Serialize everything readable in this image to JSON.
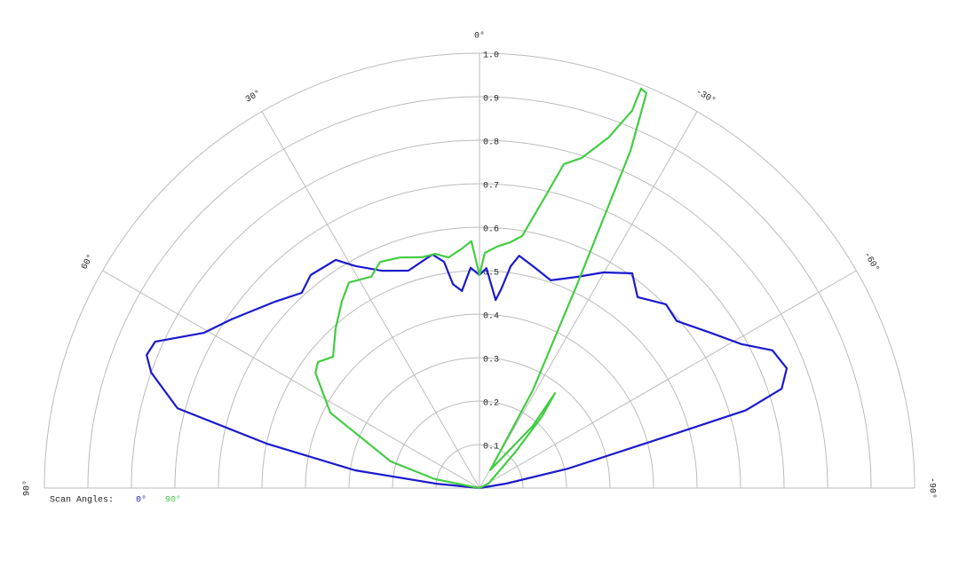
{
  "chart_data": {
    "type": "polar",
    "thetalim": [
      -90,
      90
    ],
    "rlim": [
      0,
      1
    ],
    "thetaticks": [
      {
        "value": 90,
        "label": "90°"
      },
      {
        "value": 60,
        "label": "60°"
      },
      {
        "value": 30,
        "label": "30°"
      },
      {
        "value": 0,
        "label": "0°"
      },
      {
        "value": -30,
        "label": "-30°"
      },
      {
        "value": -60,
        "label": "-60°"
      },
      {
        "value": -90,
        "label": "-90°"
      }
    ],
    "rticks": [
      0.1,
      0.2,
      0.3,
      0.4,
      0.5,
      0.6,
      0.7,
      0.8,
      0.9,
      {
        "value": 1,
        "label": "1.0"
      }
    ],
    "grid": true,
    "legend_title": "Scan Angles:",
    "series": [
      {
        "name": "0°",
        "color": "#1a1acc",
        "theta": [
          90,
          84.3,
          81.9,
          78.2,
          75.2,
          70.6,
          68.2,
          65.7,
          60.6,
          55.8,
          47.6,
          42.3,
          38.4,
          32.2,
          29.2,
          24.2,
          18.1,
          11.4,
          8.9,
          7.4,
          5.1,
          2.3,
          0,
          -1.8,
          -4.9,
          -6.3,
          -8.0,
          -9.7,
          -13.5,
          -18.9,
          -24.8,
          -29.9,
          -35.4,
          -39.6,
          -45.4,
          -49.7,
          -56.1,
          -61.2,
          -64.8,
          -68.7,
          -71.8,
          -73.7,
          -74.6,
          -77.6,
          -80.5,
          -90
        ],
        "values": [
          0,
          0.1,
          0.289,
          0.5,
          0.718,
          0.8,
          0.824,
          0.818,
          0.727,
          0.69,
          0.636,
          0.607,
          0.625,
          0.62,
          0.585,
          0.548,
          0.526,
          0.548,
          0.527,
          0.473,
          0.455,
          0.507,
          0.49,
          0.506,
          0.434,
          0.462,
          0.515,
          0.542,
          0.525,
          0.505,
          0.535,
          0.572,
          0.606,
          0.57,
          0.602,
          0.594,
          0.64,
          0.687,
          0.744,
          0.758,
          0.731,
          0.638,
          0.445,
          0.209,
          0.062,
          0
        ]
      },
      {
        "name": "90°",
        "color": "#44cc44",
        "theta": [
          90,
          78.7,
          73.3,
          63.2,
          54.9,
          52.0,
          48.1,
          42.0,
          36.4,
          32.4,
          27.1,
          23.7,
          19.1,
          14.0,
          10.7,
          7.7,
          4.2,
          1.9,
          0,
          -1.3,
          -4.2,
          -7.2,
          -9.6,
          -12.3,
          -14.6,
          -17.2,
          -20.2,
          -22.0,
          -22.0,
          -22.9,
          -24.1,
          -25.6,
          -28.6,
          -31.0,
          -40.6,
          -38.5,
          -41.2,
          -45,
          -63.4,
          -90
        ],
        "values": [
          0,
          0.104,
          0.213,
          0.384,
          0.461,
          0.471,
          0.452,
          0.494,
          0.533,
          0.56,
          0.546,
          0.568,
          0.561,
          0.547,
          0.548,
          0.535,
          0.552,
          0.568,
          0.49,
          0.541,
          0.557,
          0.57,
          0.588,
          0.672,
          0.77,
          0.795,
          0.859,
          0.936,
          0.991,
          0.986,
          0.85,
          0.52,
          0.256,
          0.048,
          0.188,
          0.279,
          0.217,
          0.115,
          0.023,
          0
        ]
      }
    ]
  }
}
